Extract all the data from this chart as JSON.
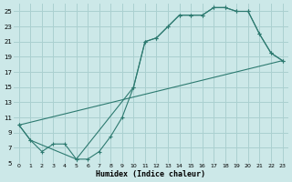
{
  "xlabel": "Humidex (Indice chaleur)",
  "bg_color": "#cce8e8",
  "grid_color": "#aad0d0",
  "line_color": "#2d7a70",
  "xlim": [
    -0.5,
    23.5
  ],
  "ylim": [
    5,
    26
  ],
  "yticks": [
    5,
    7,
    9,
    11,
    13,
    15,
    17,
    19,
    21,
    23,
    25
  ],
  "xticks": [
    0,
    1,
    2,
    3,
    4,
    5,
    6,
    7,
    8,
    9,
    10,
    11,
    12,
    13,
    14,
    15,
    16,
    17,
    18,
    19,
    20,
    21,
    22,
    23
  ],
  "line1_x": [
    0,
    1,
    2,
    3,
    4,
    5,
    6,
    7,
    8,
    9,
    10,
    11,
    12,
    13,
    14,
    15,
    16,
    17,
    18,
    19,
    20,
    21,
    22,
    23
  ],
  "line1_y": [
    10,
    8,
    6.5,
    7.5,
    7.5,
    5.5,
    5.5,
    6.5,
    8.5,
    11,
    15,
    21,
    21.5,
    23,
    24.5,
    24.5,
    24.5,
    25.5,
    25.5,
    25,
    25,
    22,
    19.5,
    18.5
  ],
  "line2_x": [
    0,
    1,
    5,
    10,
    11,
    12,
    13,
    14,
    15,
    16,
    17,
    18,
    19,
    20,
    21,
    22,
    23
  ],
  "line2_y": [
    10,
    8,
    5.5,
    15,
    21,
    21.5,
    23,
    24.5,
    24.5,
    24.5,
    25.5,
    25.5,
    25,
    25,
    22,
    19.5,
    18.5
  ],
  "line3_x": [
    0,
    23
  ],
  "line3_y": [
    10,
    18.5
  ]
}
